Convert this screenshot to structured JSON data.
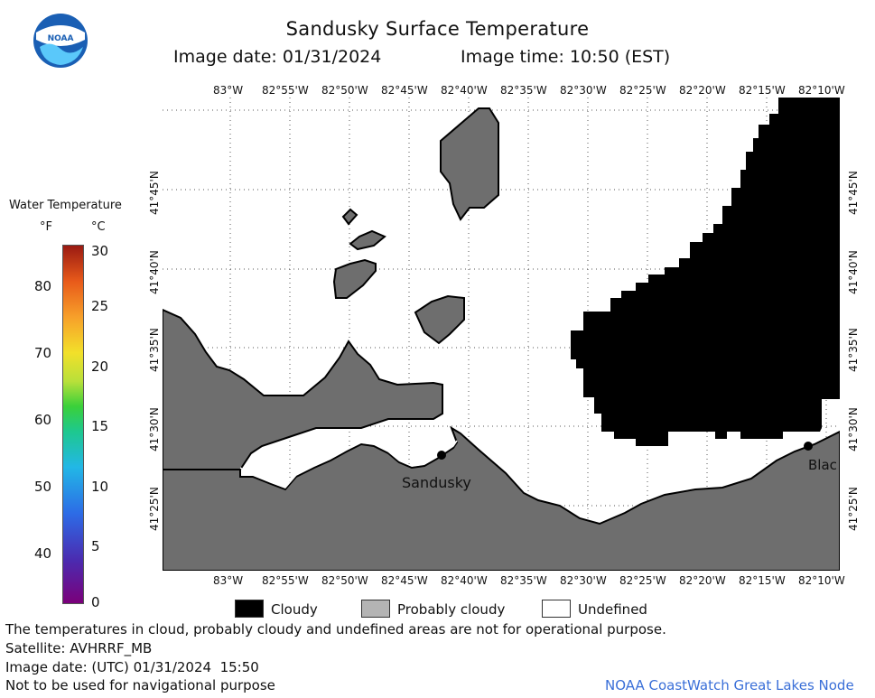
{
  "header": {
    "title": "Sandusky Surface Temperature",
    "image_date": "Image date: 01/31/2024",
    "image_time": "Image time: 10:50 (EST)"
  },
  "logo": {
    "text": "NOAA"
  },
  "colorbar": {
    "title": "Water Temperature",
    "unit_f": "°F",
    "unit_c": "°C",
    "f_ticks": [
      "80",
      "70",
      "60",
      "50",
      "40"
    ],
    "c_ticks": [
      "30",
      "25",
      "20",
      "15",
      "10",
      "5",
      "0"
    ],
    "range_c": [
      0,
      30
    ]
  },
  "map": {
    "lon_labels": [
      "83°W",
      "82°55'W",
      "82°50'W",
      "82°45'W",
      "82°40'W",
      "82°35'W",
      "82°30'W",
      "82°25'W",
      "82°20'W",
      "82°15'W",
      "82°10'W"
    ],
    "lat_labels": [
      "41°45'N",
      "41°40'N",
      "41°35'N",
      "41°30'N",
      "41°25'N"
    ],
    "places": {
      "sandusky": "Sandusky",
      "blac": "Blac"
    },
    "colors": {
      "land": "#6e6e6e",
      "cloud": "#000000",
      "undefined": "#ffffff"
    }
  },
  "legend": {
    "cloudy": "Cloudy",
    "probably_cloudy": "Probably cloudy",
    "undefined": "Undefined"
  },
  "footer": {
    "disclaimer": "The temperatures in cloud, probably cloudy and undefined areas are not for operational purpose.",
    "satellite": "Satellite: AVHRRF_MB",
    "utc_date": "Image date: (UTC) 01/31/2024  15:50",
    "nav_warning": "Not to be used for navigational purpose",
    "credit": "NOAA CoastWatch Great Lakes Node"
  }
}
